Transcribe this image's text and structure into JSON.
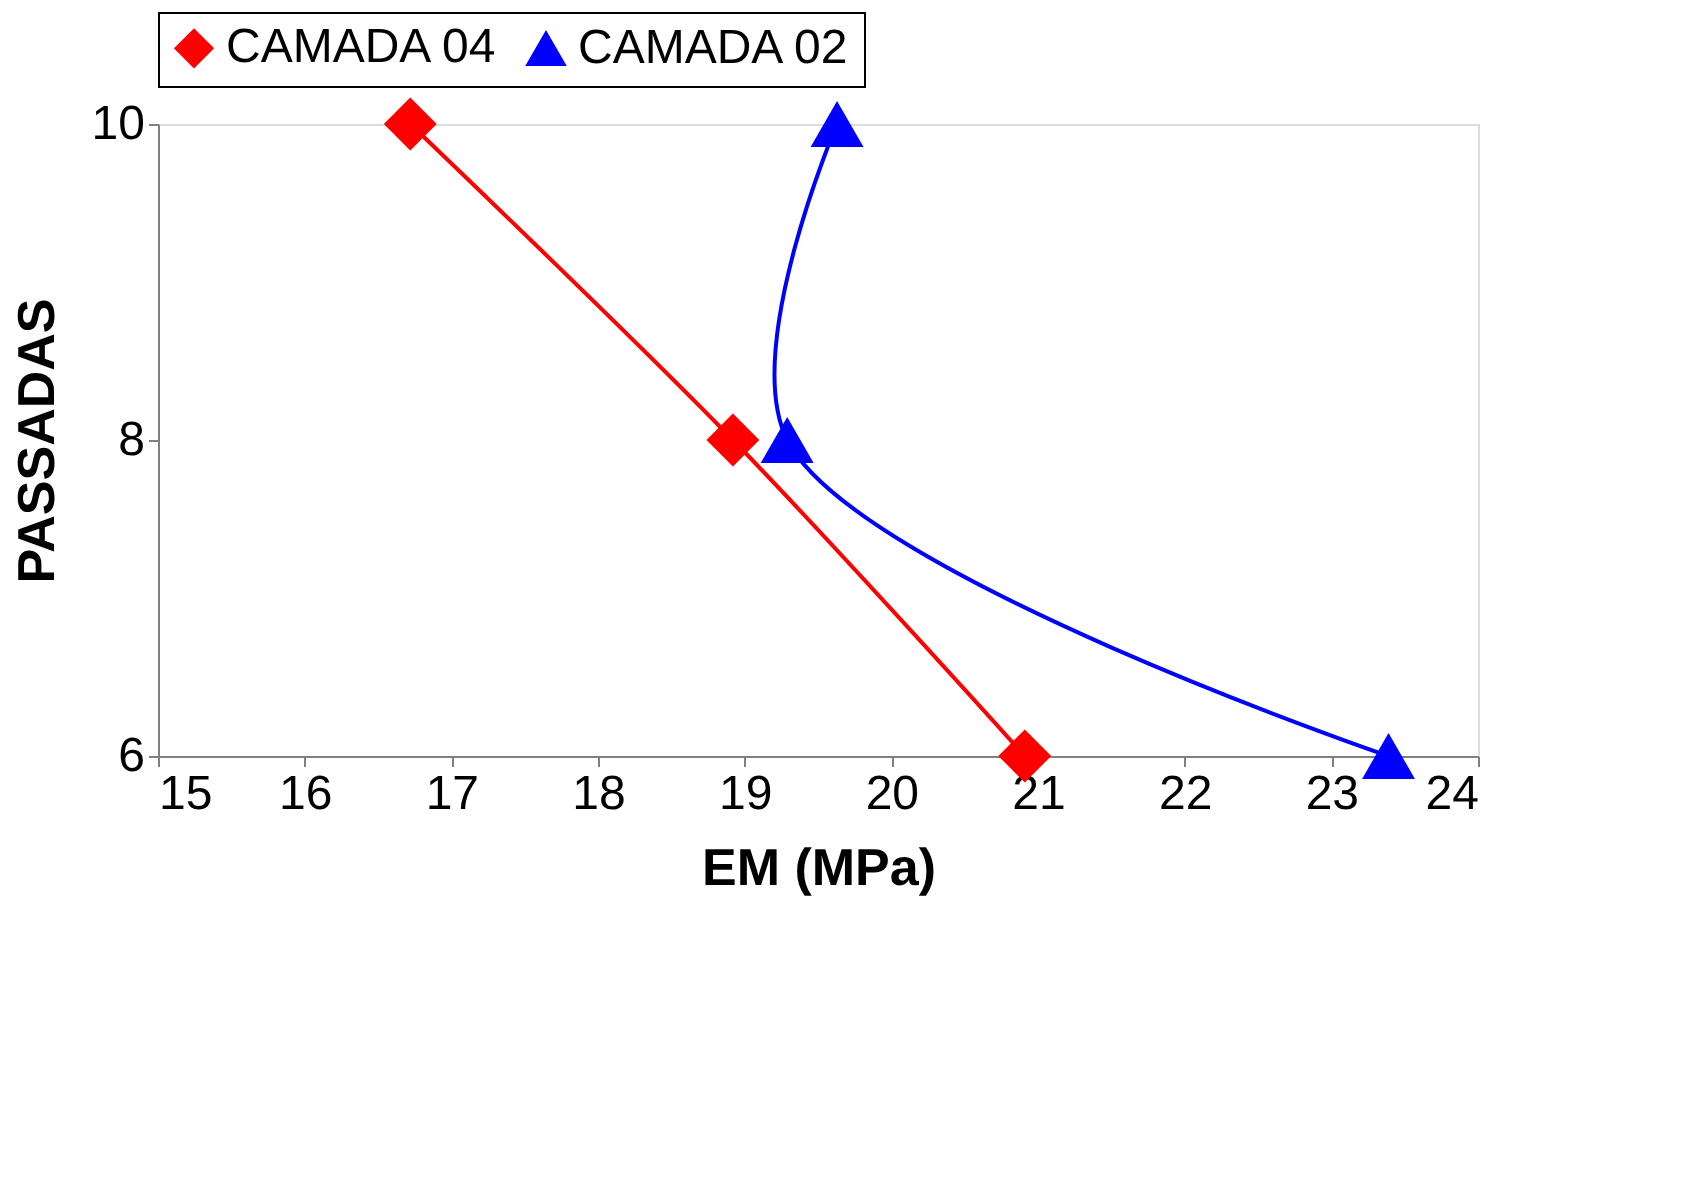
{
  "chart_data": {
    "type": "line",
    "xlabel": "EM (MPa)",
    "ylabel": "PASSADAS",
    "series": [
      {
        "name": "CAMADA 04",
        "color": "#ff0000",
        "x": [
          16.72,
          18.92,
          20.91
        ],
        "values": [
          10,
          8,
          6
        ],
        "marker": "diamond"
      },
      {
        "name": "CAMADA 02",
        "color": "#0000ff",
        "x": [
          19.63,
          19.29,
          23.39
        ],
        "values": [
          10,
          8,
          6
        ],
        "marker": "triangle"
      }
    ],
    "xlim": [
      15,
      24
    ],
    "xticks": [
      15,
      16,
      17,
      18,
      19,
      20,
      21,
      22,
      23,
      24
    ],
    "ylim": [
      6,
      10
    ],
    "yticks": [
      6,
      8,
      10
    ],
    "grid": false,
    "legend": "top",
    "line_style": "solid"
  }
}
